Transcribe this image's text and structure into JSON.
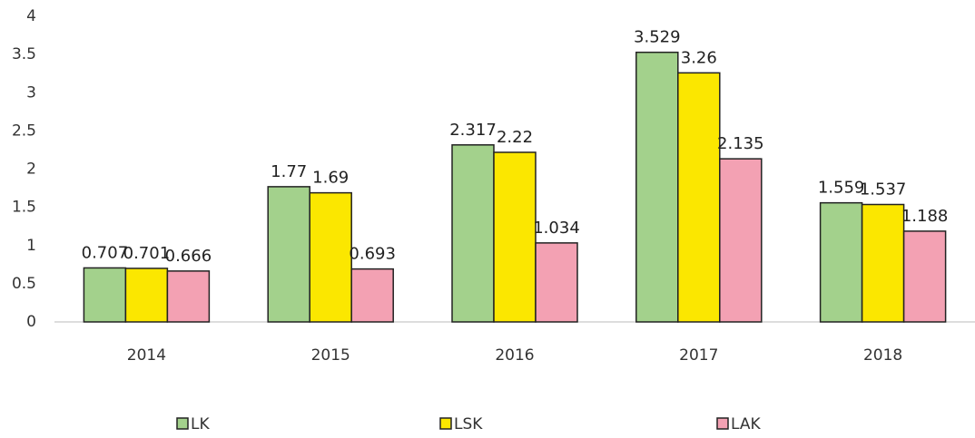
{
  "chart_data": {
    "type": "bar",
    "categories": [
      "2014",
      "2015",
      "2016",
      "2017",
      "2018"
    ],
    "series": [
      {
        "name": "LK",
        "color": "#a3d18c",
        "values": [
          0.707,
          1.77,
          2.317,
          3.529,
          1.559
        ]
      },
      {
        "name": "LSK",
        "color": "#fbe700",
        "values": [
          0.701,
          1.69,
          2.22,
          3.26,
          1.537
        ]
      },
      {
        "name": "LAK",
        "color": "#f3a1b3",
        "values": [
          0.666,
          0.693,
          1.034,
          2.135,
          1.188
        ]
      }
    ],
    "ylim": [
      0,
      4
    ],
    "yticks": [
      0,
      0.5,
      1,
      1.5,
      2,
      2.5,
      3,
      3.5,
      4
    ],
    "grid": false,
    "legend": "bottom"
  }
}
